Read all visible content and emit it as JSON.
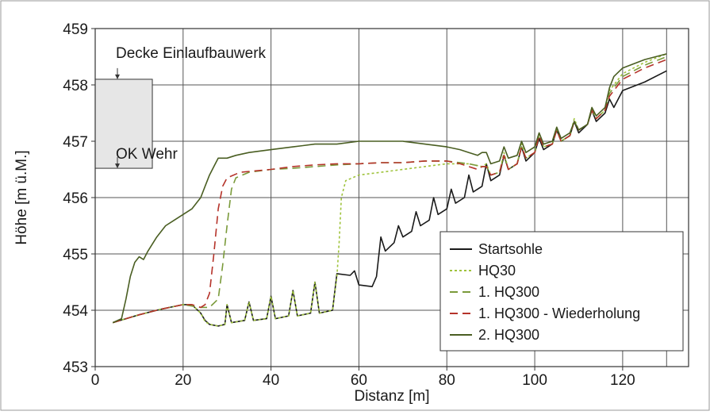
{
  "chart_data": {
    "type": "line",
    "xlabel": "Distanz [m]",
    "ylabel": "Höhe [m ü.M.]",
    "xlim": [
      0,
      135
    ],
    "ylim": [
      453,
      459
    ],
    "xticks": [
      "0",
      "20",
      "40",
      "60",
      "80",
      "100",
      "120"
    ],
    "yticks": [
      "453",
      "454",
      "455",
      "456",
      "457",
      "458",
      "459"
    ],
    "grid": true,
    "legend_position": "bottom-right",
    "annotations": {
      "decke": "Decke Einlaufbauwerk",
      "ok_wehr": "OK Wehr",
      "structure_box": {
        "x": [
          0,
          13
        ],
        "y": [
          456.52,
          458.1
        ]
      }
    },
    "series": [
      {
        "name": "Startsohle",
        "color": "#1a1a1a",
        "dash": "solid",
        "points": [
          [
            4,
            453.78
          ],
          [
            10,
            453.92
          ],
          [
            15,
            454.02
          ],
          [
            20,
            454.1
          ],
          [
            22,
            454.1
          ],
          [
            24,
            453.95
          ],
          [
            25,
            453.82
          ],
          [
            26,
            453.75
          ],
          [
            28,
            453.72
          ],
          [
            29.5,
            453.75
          ],
          [
            30,
            454.1
          ],
          [
            31,
            453.78
          ],
          [
            34,
            453.82
          ],
          [
            35,
            454.15
          ],
          [
            36,
            453.82
          ],
          [
            39,
            453.85
          ],
          [
            40,
            454.25
          ],
          [
            41,
            453.85
          ],
          [
            44,
            453.9
          ],
          [
            45,
            454.35
          ],
          [
            46,
            453.9
          ],
          [
            49,
            453.95
          ],
          [
            50,
            454.5
          ],
          [
            51,
            453.95
          ],
          [
            54,
            454.0
          ],
          [
            55,
            454.65
          ],
          [
            58,
            454.62
          ],
          [
            59,
            454.7
          ],
          [
            60,
            454.45
          ],
          [
            63,
            454.42
          ],
          [
            64,
            454.6
          ],
          [
            65,
            455.3
          ],
          [
            66,
            455.05
          ],
          [
            68,
            455.2
          ],
          [
            69,
            455.5
          ],
          [
            70,
            455.3
          ],
          [
            72,
            455.4
          ],
          [
            73,
            455.75
          ],
          [
            74,
            455.5
          ],
          [
            76,
            455.6
          ],
          [
            77,
            456.0
          ],
          [
            78,
            455.7
          ],
          [
            80,
            455.8
          ],
          [
            81,
            456.15
          ],
          [
            82,
            455.9
          ],
          [
            84,
            456.0
          ],
          [
            85,
            456.4
          ],
          [
            86,
            456.1
          ],
          [
            88,
            456.2
          ],
          [
            89,
            456.6
          ],
          [
            90,
            456.3
          ],
          [
            92,
            456.4
          ],
          [
            93,
            456.75
          ],
          [
            94,
            456.5
          ],
          [
            96,
            456.6
          ],
          [
            97,
            456.9
          ],
          [
            98,
            456.65
          ],
          [
            100,
            456.8
          ],
          [
            101,
            457.05
          ],
          [
            102,
            456.85
          ],
          [
            104,
            456.95
          ],
          [
            105,
            457.2
          ],
          [
            106,
            457.0
          ],
          [
            108,
            457.1
          ],
          [
            109,
            457.35
          ],
          [
            110,
            457.15
          ],
          [
            112,
            457.3
          ],
          [
            113,
            457.55
          ],
          [
            114,
            457.35
          ],
          [
            116,
            457.5
          ],
          [
            117,
            457.75
          ],
          [
            118,
            457.6
          ],
          [
            120,
            457.9
          ],
          [
            125,
            458.05
          ],
          [
            130,
            458.25
          ]
        ]
      },
      {
        "name": "HQ30",
        "color": "#9fc33c",
        "dash": "3,3",
        "points": [
          [
            4,
            453.78
          ],
          [
            10,
            453.92
          ],
          [
            15,
            454.02
          ],
          [
            20,
            454.1
          ],
          [
            22,
            454.1
          ],
          [
            24,
            453.95
          ],
          [
            25,
            453.8
          ],
          [
            26,
            453.75
          ],
          [
            28,
            453.72
          ],
          [
            29.5,
            453.75
          ],
          [
            30,
            454.1
          ],
          [
            31,
            453.78
          ],
          [
            34,
            453.82
          ],
          [
            35,
            454.15
          ],
          [
            36,
            453.82
          ],
          [
            39,
            453.85
          ],
          [
            40,
            454.25
          ],
          [
            41,
            453.85
          ],
          [
            44,
            453.9
          ],
          [
            45,
            454.35
          ],
          [
            46,
            453.9
          ],
          [
            49,
            453.95
          ],
          [
            50,
            454.5
          ],
          [
            51,
            453.95
          ],
          [
            54,
            454.0
          ],
          [
            55,
            454.6
          ],
          [
            55.5,
            455.2
          ],
          [
            56,
            456.0
          ],
          [
            57,
            456.3
          ],
          [
            60,
            456.4
          ],
          [
            65,
            456.45
          ],
          [
            70,
            456.5
          ],
          [
            75,
            456.55
          ],
          [
            80,
            456.6
          ],
          [
            85,
            456.6
          ],
          [
            88,
            456.55
          ],
          [
            89,
            456.6
          ],
          [
            90,
            456.4
          ],
          [
            92,
            456.45
          ],
          [
            93,
            456.8
          ],
          [
            94,
            456.5
          ],
          [
            96,
            456.6
          ],
          [
            97,
            456.95
          ],
          [
            98,
            456.7
          ],
          [
            100,
            456.8
          ],
          [
            101,
            457.15
          ],
          [
            102,
            456.9
          ],
          [
            104,
            456.95
          ],
          [
            105,
            457.25
          ],
          [
            106,
            457.0
          ],
          [
            108,
            457.1
          ],
          [
            109,
            457.4
          ],
          [
            110,
            457.2
          ],
          [
            112,
            457.3
          ],
          [
            113,
            457.6
          ],
          [
            114,
            457.4
          ],
          [
            116,
            457.55
          ],
          [
            117,
            457.9
          ],
          [
            120,
            458.2
          ],
          [
            125,
            458.4
          ],
          [
            130,
            458.55
          ]
        ]
      },
      {
        "name": "1. HQ300",
        "color": "#7a9a3a",
        "dash": "10,6",
        "points": [
          [
            4,
            453.78
          ],
          [
            10,
            453.92
          ],
          [
            15,
            454.02
          ],
          [
            20,
            454.1
          ],
          [
            24,
            454.05
          ],
          [
            26,
            454.05
          ],
          [
            28,
            454.2
          ],
          [
            29,
            454.8
          ],
          [
            30,
            455.5
          ],
          [
            31,
            456.15
          ],
          [
            32,
            456.35
          ],
          [
            35,
            456.45
          ],
          [
            40,
            456.5
          ],
          [
            45,
            456.52
          ],
          [
            50,
            456.55
          ],
          [
            55,
            456.58
          ],
          [
            60,
            456.6
          ],
          [
            65,
            456.62
          ],
          [
            70,
            456.62
          ],
          [
            75,
            456.65
          ],
          [
            80,
            456.65
          ],
          [
            85,
            456.6
          ],
          [
            88,
            456.55
          ],
          [
            89,
            456.55
          ],
          [
            90,
            456.4
          ],
          [
            92,
            456.45
          ],
          [
            93,
            456.75
          ],
          [
            94,
            456.5
          ],
          [
            96,
            456.6
          ],
          [
            97,
            456.9
          ],
          [
            98,
            456.7
          ],
          [
            100,
            456.8
          ],
          [
            101,
            457.1
          ],
          [
            102,
            456.9
          ],
          [
            104,
            456.95
          ],
          [
            105,
            457.2
          ],
          [
            106,
            457.0
          ],
          [
            108,
            457.1
          ],
          [
            109,
            457.35
          ],
          [
            110,
            457.2
          ],
          [
            112,
            457.3
          ],
          [
            113,
            457.55
          ],
          [
            114,
            457.4
          ],
          [
            116,
            457.55
          ],
          [
            117,
            457.85
          ],
          [
            120,
            458.15
          ],
          [
            125,
            458.35
          ],
          [
            130,
            458.5
          ]
        ]
      },
      {
        "name": "1. HQ300 - Wiederholung",
        "color": "#b5332a",
        "dash": "10,6",
        "points": [
          [
            4,
            453.78
          ],
          [
            10,
            453.92
          ],
          [
            15,
            454.02
          ],
          [
            20,
            454.1
          ],
          [
            22,
            454.1
          ],
          [
            24,
            454.05
          ],
          [
            25,
            454.1
          ],
          [
            26,
            454.3
          ],
          [
            27,
            455.0
          ],
          [
            28,
            455.8
          ],
          [
            29,
            456.2
          ],
          [
            30,
            456.35
          ],
          [
            33,
            456.45
          ],
          [
            40,
            456.5
          ],
          [
            45,
            456.55
          ],
          [
            50,
            456.58
          ],
          [
            55,
            456.6
          ],
          [
            60,
            456.6
          ],
          [
            65,
            456.62
          ],
          [
            70,
            456.62
          ],
          [
            75,
            456.65
          ],
          [
            80,
            456.65
          ],
          [
            83,
            456.6
          ],
          [
            85,
            456.55
          ],
          [
            87,
            456.5
          ],
          [
            88,
            456.55
          ],
          [
            89,
            456.55
          ],
          [
            90,
            456.4
          ],
          [
            92,
            456.45
          ],
          [
            93,
            456.75
          ],
          [
            94,
            456.5
          ],
          [
            96,
            456.6
          ],
          [
            97,
            456.9
          ],
          [
            98,
            456.7
          ],
          [
            100,
            456.8
          ],
          [
            101,
            457.1
          ],
          [
            102,
            456.9
          ],
          [
            104,
            456.95
          ],
          [
            105,
            457.2
          ],
          [
            106,
            457.0
          ],
          [
            108,
            457.1
          ],
          [
            109,
            457.35
          ],
          [
            110,
            457.2
          ],
          [
            112,
            457.3
          ],
          [
            113,
            457.55
          ],
          [
            114,
            457.4
          ],
          [
            116,
            457.55
          ],
          [
            117,
            457.8
          ],
          [
            120,
            458.1
          ],
          [
            125,
            458.3
          ],
          [
            130,
            458.45
          ]
        ]
      },
      {
        "name": "2. HQ300",
        "color": "#4a5e22",
        "dash": "solid",
        "points": [
          [
            4,
            453.78
          ],
          [
            6,
            453.85
          ],
          [
            7,
            454.2
          ],
          [
            8,
            454.6
          ],
          [
            9,
            454.85
          ],
          [
            10,
            454.95
          ],
          [
            11,
            454.9
          ],
          [
            12,
            455.05
          ],
          [
            14,
            455.3
          ],
          [
            16,
            455.5
          ],
          [
            18,
            455.6
          ],
          [
            20,
            455.7
          ],
          [
            22,
            455.8
          ],
          [
            24,
            456.0
          ],
          [
            25,
            456.2
          ],
          [
            26,
            456.4
          ],
          [
            27,
            456.55
          ],
          [
            28,
            456.7
          ],
          [
            30,
            456.7
          ],
          [
            32,
            456.75
          ],
          [
            35,
            456.8
          ],
          [
            40,
            456.85
          ],
          [
            45,
            456.9
          ],
          [
            50,
            456.95
          ],
          [
            55,
            456.95
          ],
          [
            60,
            457.0
          ],
          [
            65,
            457.0
          ],
          [
            70,
            457.0
          ],
          [
            75,
            456.95
          ],
          [
            80,
            456.9
          ],
          [
            83,
            456.85
          ],
          [
            85,
            456.8
          ],
          [
            87,
            456.75
          ],
          [
            88,
            456.8
          ],
          [
            89,
            456.8
          ],
          [
            90,
            456.6
          ],
          [
            92,
            456.65
          ],
          [
            93,
            456.9
          ],
          [
            94,
            456.7
          ],
          [
            96,
            456.75
          ],
          [
            97,
            457.0
          ],
          [
            98,
            456.8
          ],
          [
            100,
            456.9
          ],
          [
            101,
            457.15
          ],
          [
            102,
            456.95
          ],
          [
            104,
            457.0
          ],
          [
            105,
            457.25
          ],
          [
            106,
            457.05
          ],
          [
            108,
            457.15
          ],
          [
            109,
            457.35
          ],
          [
            110,
            457.2
          ],
          [
            112,
            457.3
          ],
          [
            113,
            457.6
          ],
          [
            114,
            457.45
          ],
          [
            116,
            457.6
          ],
          [
            117,
            457.95
          ],
          [
            118,
            458.15
          ],
          [
            120,
            458.3
          ],
          [
            125,
            458.45
          ],
          [
            130,
            458.55
          ]
        ]
      }
    ]
  }
}
